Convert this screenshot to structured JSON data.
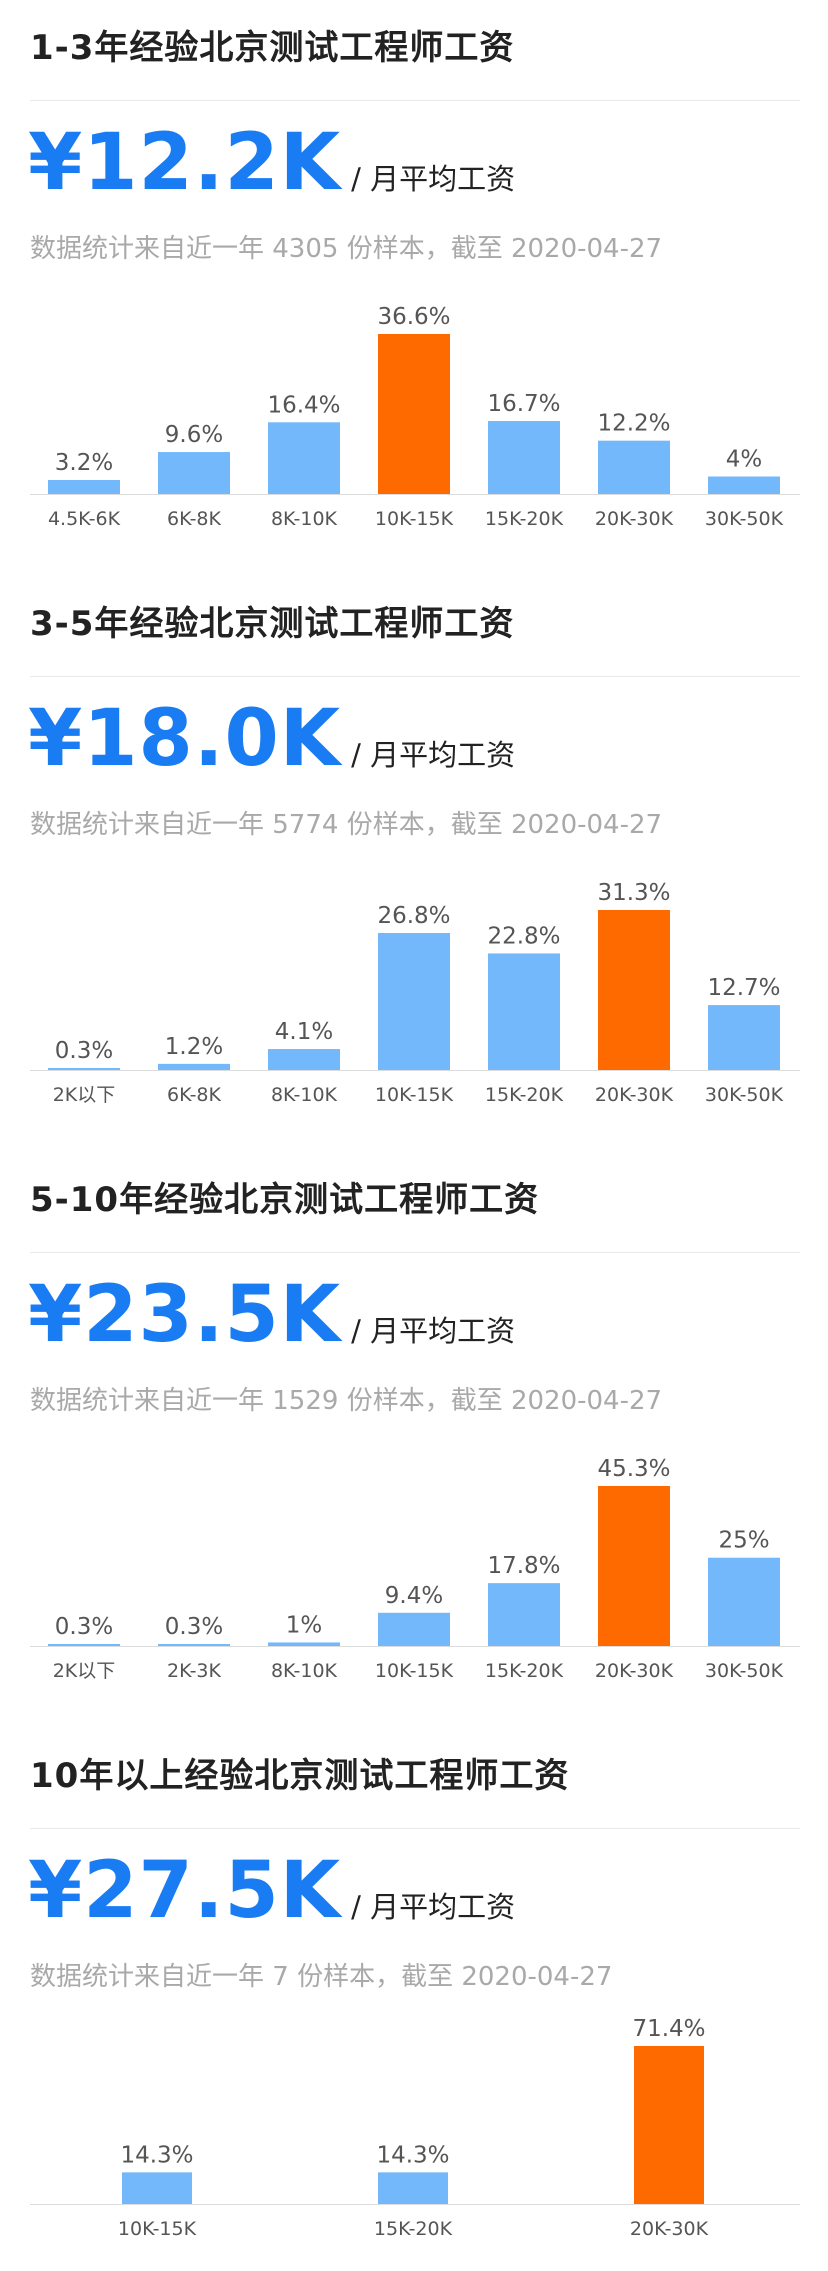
{
  "colors": {
    "accent": "#1a7cf2",
    "bar": "#74b8fc",
    "highlight": "#ff6a00",
    "axis": "#dcdcdc",
    "label": "#555555"
  },
  "sections": [
    {
      "title": "1-3年经验北京测试工程师工资",
      "salary": "¥12.2K",
      "unit": "/ 月平均工资",
      "note": "数据统计来自近一年 4305 份样本，截至 2020-04-27"
    },
    {
      "title": "3-5年经验北京测试工程师工资",
      "salary": "¥18.0K",
      "unit": "/ 月平均工资",
      "note": "数据统计来自近一年 5774 份样本，截至 2020-04-27"
    },
    {
      "title": "5-10年经验北京测试工程师工资",
      "salary": "¥23.5K",
      "unit": "/ 月平均工资",
      "note": "数据统计来自近一年 1529 份样本，截至 2020-04-27"
    },
    {
      "title": "10年以上经验北京测试工程师工资",
      "salary": "¥27.5K",
      "unit": "/ 月平均工资",
      "note": "数据统计来自近一年 7 份样本，截至 2020-04-27"
    }
  ],
  "chart_data": [
    {
      "type": "bar",
      "title": "1-3年经验北京测试工程师工资",
      "categories": [
        "4.5K-6K",
        "6K-8K",
        "8K-10K",
        "10K-15K",
        "15K-20K",
        "20K-30K",
        "30K-50K"
      ],
      "values": [
        3.2,
        9.6,
        16.4,
        36.6,
        16.7,
        12.2,
        4
      ],
      "value_labels": [
        "3.2%",
        "9.6%",
        "16.4%",
        "36.6%",
        "16.7%",
        "12.2%",
        "4%"
      ],
      "highlight_index": 3,
      "ylim": [
        0,
        36.6
      ],
      "grid": false
    },
    {
      "type": "bar",
      "title": "3-5年经验北京测试工程师工资",
      "categories": [
        "2K以下",
        "6K-8K",
        "8K-10K",
        "10K-15K",
        "15K-20K",
        "20K-30K",
        "30K-50K"
      ],
      "values": [
        0.3,
        1.2,
        4.1,
        26.8,
        22.8,
        31.3,
        12.7
      ],
      "value_labels": [
        "0.3%",
        "1.2%",
        "4.1%",
        "26.8%",
        "22.8%",
        "31.3%",
        "12.7%"
      ],
      "highlight_index": 5,
      "ylim": [
        0,
        31.3
      ],
      "grid": false
    },
    {
      "type": "bar",
      "title": "5-10年经验北京测试工程师工资",
      "categories": [
        "2K以下",
        "2K-3K",
        "8K-10K",
        "10K-15K",
        "15K-20K",
        "20K-30K",
        "30K-50K"
      ],
      "values": [
        0.3,
        0.3,
        1,
        9.4,
        17.8,
        45.3,
        25
      ],
      "value_labels": [
        "0.3%",
        "0.3%",
        "1%",
        "9.4%",
        "17.8%",
        "45.3%",
        "25%"
      ],
      "highlight_index": 5,
      "ylim": [
        0,
        45.3
      ],
      "grid": false
    },
    {
      "type": "bar",
      "title": "10年以上经验北京测试工程师工资",
      "categories": [
        "10K-15K",
        "15K-20K",
        "20K-30K"
      ],
      "values": [
        14.3,
        14.3,
        71.4
      ],
      "value_labels": [
        "14.3%",
        "14.3%",
        "71.4%"
      ],
      "highlight_index": 2,
      "ylim": [
        0,
        71.4
      ],
      "grid": false
    }
  ]
}
